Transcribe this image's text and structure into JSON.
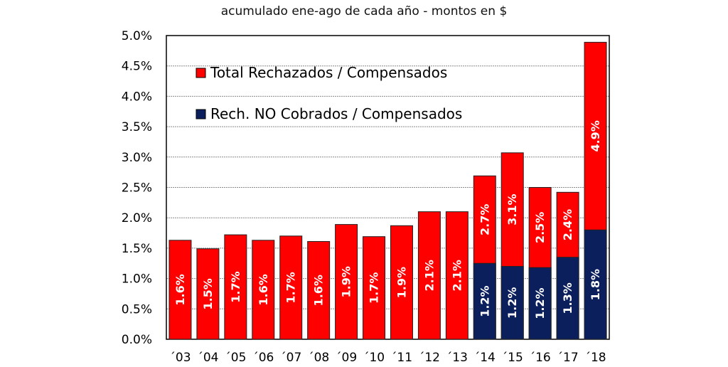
{
  "chart_data": {
    "type": "bar",
    "title": "acumulado ene-ago de cada año - montos en $",
    "categories": [
      "´03",
      "´04",
      "´05",
      "´06",
      "´07",
      "´08",
      "´09",
      "´10",
      "´11",
      "´12",
      "´13",
      "´14",
      "´15",
      "´16",
      "´17",
      "´18"
    ],
    "series": [
      {
        "name": "Total Rechazados / Compensados",
        "color": "#ff0000",
        "values": [
          1.63,
          1.49,
          1.72,
          1.63,
          1.7,
          1.61,
          1.89,
          1.69,
          1.87,
          2.1,
          2.1,
          2.69,
          3.07,
          2.5,
          2.42,
          4.89
        ],
        "labels": [
          "1.6%",
          "1.5%",
          "1.7%",
          "1.6%",
          "1.7%",
          "1.6%",
          "1.9%",
          "1.7%",
          "1.9%",
          "2.1%",
          "2.1%",
          "2.7%",
          "3.1%",
          "2.5%",
          "2.4%",
          "4.9%"
        ]
      },
      {
        "name": "Rech. NO Cobrados / Compensados",
        "color": "#0b1f5c",
        "values": [
          null,
          null,
          null,
          null,
          null,
          null,
          null,
          null,
          null,
          null,
          null,
          1.25,
          1.2,
          1.18,
          1.35,
          1.8
        ],
        "labels": [
          "",
          "",
          "",
          "",
          "",
          "",
          "",
          "",
          "",
          "",
          "",
          "1.2%",
          "1.2%",
          "1.2%",
          "1.3%",
          "1.8%"
        ]
      }
    ],
    "y_ticks": [
      "0.0%",
      "0.5%",
      "1.0%",
      "1.5%",
      "2.0%",
      "2.5%",
      "3.0%",
      "3.5%",
      "4.0%",
      "4.5%",
      "5.0%"
    ],
    "ylim": [
      0,
      5.0
    ],
    "grid": true,
    "legend_position": "top-left"
  }
}
